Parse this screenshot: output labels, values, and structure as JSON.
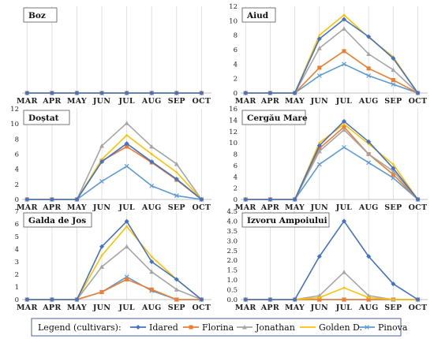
{
  "legend": {
    "title": "Legend (cultivars):",
    "items": [
      {
        "name": "Idared",
        "color": "#4472C4"
      },
      {
        "name": "Florina",
        "color": "#ED7D31"
      },
      {
        "name": "Jonathan",
        "color": "#A5A5A5"
      },
      {
        "name": "Golden D.",
        "color": "#FFC000"
      },
      {
        "name": "Pinova",
        "color": "#5B9BD5"
      }
    ]
  },
  "chart_data": [
    {
      "type": "line",
      "title": "Boz",
      "categories": [
        "MAR",
        "APR",
        "MAY",
        "JUN",
        "JUL",
        "AUG",
        "SEP",
        "OCT"
      ],
      "ylim": [
        0,
        1
      ],
      "yticks": [],
      "series": [
        {
          "name": "Idared",
          "values": [
            0,
            0,
            0,
            0,
            0,
            0,
            0,
            0
          ]
        },
        {
          "name": "Florina",
          "values": [
            0,
            0,
            0,
            0,
            0,
            0,
            0,
            0
          ]
        },
        {
          "name": "Jonathan",
          "values": [
            0,
            0,
            0,
            0,
            0,
            0,
            0,
            0
          ]
        },
        {
          "name": "Golden D.",
          "values": [
            0,
            0,
            0,
            0,
            0,
            0,
            0,
            0
          ]
        },
        {
          "name": "Pinova",
          "values": [
            0,
            0,
            0,
            0,
            0,
            0,
            0,
            0
          ]
        }
      ]
    },
    {
      "type": "line",
      "title": "Aiud",
      "categories": [
        "MAR",
        "APR",
        "MAY",
        "JUN",
        "JUL",
        "AUG",
        "SEP",
        "OCT"
      ],
      "ylim": [
        0,
        12
      ],
      "yticks": [
        "0",
        "2",
        "4",
        "6",
        "8",
        "10",
        "12"
      ],
      "series": [
        {
          "name": "Idared",
          "values": [
            0,
            0,
            0,
            7.5,
            10.2,
            7.8,
            4.8,
            0
          ]
        },
        {
          "name": "Florina",
          "values": [
            0,
            0,
            0,
            3.5,
            5.8,
            3.4,
            1.8,
            0
          ]
        },
        {
          "name": "Jonathan",
          "values": [
            0,
            0,
            0,
            6.2,
            8.9,
            5.4,
            3.2,
            0
          ]
        },
        {
          "name": "Golden D.",
          "values": [
            0,
            0,
            0,
            8.0,
            10.8,
            7.7,
            5.0,
            0
          ]
        },
        {
          "name": "Pinova",
          "values": [
            0,
            0,
            0,
            2.4,
            4.0,
            2.4,
            1.2,
            0
          ]
        }
      ]
    },
    {
      "type": "line",
      "title": "Doștat",
      "categories": [
        "MAR",
        "APR",
        "MAY",
        "JUN",
        "JUL",
        "AUG",
        "SEP",
        "OCT"
      ],
      "ylim": [
        0,
        12
      ],
      "yticks": [
        "0",
        "2",
        "4",
        "6",
        "8",
        "10",
        "12"
      ],
      "series": [
        {
          "name": "Idared",
          "values": [
            0,
            0,
            0,
            5.0,
            7.4,
            5.0,
            2.7,
            0
          ]
        },
        {
          "name": "Florina",
          "values": [
            0,
            0,
            0,
            5.1,
            7.0,
            4.9,
            2.6,
            0
          ]
        },
        {
          "name": "Jonathan",
          "values": [
            0,
            0,
            0,
            7.1,
            10.1,
            7.0,
            4.7,
            0
          ]
        },
        {
          "name": "Golden D.",
          "values": [
            0,
            0,
            0,
            5.3,
            8.5,
            6.0,
            3.6,
            0
          ]
        },
        {
          "name": "Pinova",
          "values": [
            0,
            0,
            0,
            2.4,
            4.4,
            1.8,
            0.5,
            0
          ]
        }
      ]
    },
    {
      "type": "line",
      "title": "Cergău Mare",
      "categories": [
        "MAR",
        "APR",
        "MAY",
        "JUN",
        "JUL",
        "AUG",
        "SEP",
        "OCT"
      ],
      "ylim": [
        0,
        16
      ],
      "yticks": [
        "0",
        "2",
        "4",
        "6",
        "8",
        "10",
        "12",
        "14",
        "16"
      ],
      "series": [
        {
          "name": "Idared",
          "values": [
            0,
            0,
            0,
            9.5,
            13.8,
            10.2,
            5.5,
            0
          ]
        },
        {
          "name": "Florina",
          "values": [
            0,
            0,
            0,
            9.0,
            12.8,
            8.0,
            4.4,
            0
          ]
        },
        {
          "name": "Jonathan",
          "values": [
            0,
            0,
            0,
            8.5,
            12.3,
            8.0,
            5.0,
            0
          ]
        },
        {
          "name": "Golden D.",
          "values": [
            0,
            0,
            0,
            10.0,
            13.3,
            9.8,
            6.2,
            0
          ]
        },
        {
          "name": "Pinova",
          "values": [
            0,
            0,
            0,
            6.2,
            9.2,
            6.5,
            3.8,
            0
          ]
        }
      ]
    },
    {
      "type": "line",
      "title": "Galda de Jos",
      "categories": [
        "MAR",
        "APR",
        "MAY",
        "JUN",
        "JUL",
        "AUG",
        "SEP",
        "OCT"
      ],
      "ylim": [
        0,
        7
      ],
      "yticks": [
        "0",
        "1",
        "2",
        "3",
        "4",
        "5",
        "6",
        "7"
      ],
      "series": [
        {
          "name": "Idared",
          "values": [
            0,
            0,
            0,
            4.2,
            6.2,
            3.0,
            1.6,
            0
          ]
        },
        {
          "name": "Florina",
          "values": [
            0,
            0,
            0,
            0.6,
            1.6,
            0.8,
            0,
            0
          ]
        },
        {
          "name": "Jonathan",
          "values": [
            0,
            0,
            0,
            2.6,
            4.2,
            2.2,
            0.8,
            0
          ]
        },
        {
          "name": "Golden D.",
          "values": [
            0,
            0,
            0,
            3.5,
            5.8,
            3.4,
            1.6,
            0
          ]
        },
        {
          "name": "Pinova",
          "values": [
            0,
            0,
            0,
            0.6,
            1.8,
            0.7,
            0,
            0
          ]
        }
      ]
    },
    {
      "type": "line",
      "title": "Izvoru Ampoiului",
      "categories": [
        "MAR",
        "APR",
        "MAY",
        "JUN",
        "JUL",
        "AUG",
        "SEP",
        "OCT"
      ],
      "ylim": [
        0,
        4.5
      ],
      "yticks": [
        "0.0",
        "0.5",
        "1.0",
        "1.5",
        "2.0",
        "2.5",
        "3.0",
        "3.5",
        "4.0",
        "4.5"
      ],
      "series": [
        {
          "name": "Idared",
          "values": [
            0,
            0,
            0,
            2.2,
            4.0,
            2.2,
            0.8,
            0
          ]
        },
        {
          "name": "Florina",
          "values": [
            0,
            0,
            0,
            0,
            0,
            0,
            0,
            0
          ]
        },
        {
          "name": "Jonathan",
          "values": [
            0,
            0,
            0,
            0.2,
            1.4,
            0.2,
            0,
            0
          ]
        },
        {
          "name": "Golden D.",
          "values": [
            0,
            0,
            0,
            0.1,
            0.6,
            0.1,
            0,
            0
          ]
        },
        {
          "name": "Pinova",
          "values": [
            0,
            0,
            0,
            0,
            0,
            0,
            0,
            0
          ]
        }
      ]
    }
  ]
}
